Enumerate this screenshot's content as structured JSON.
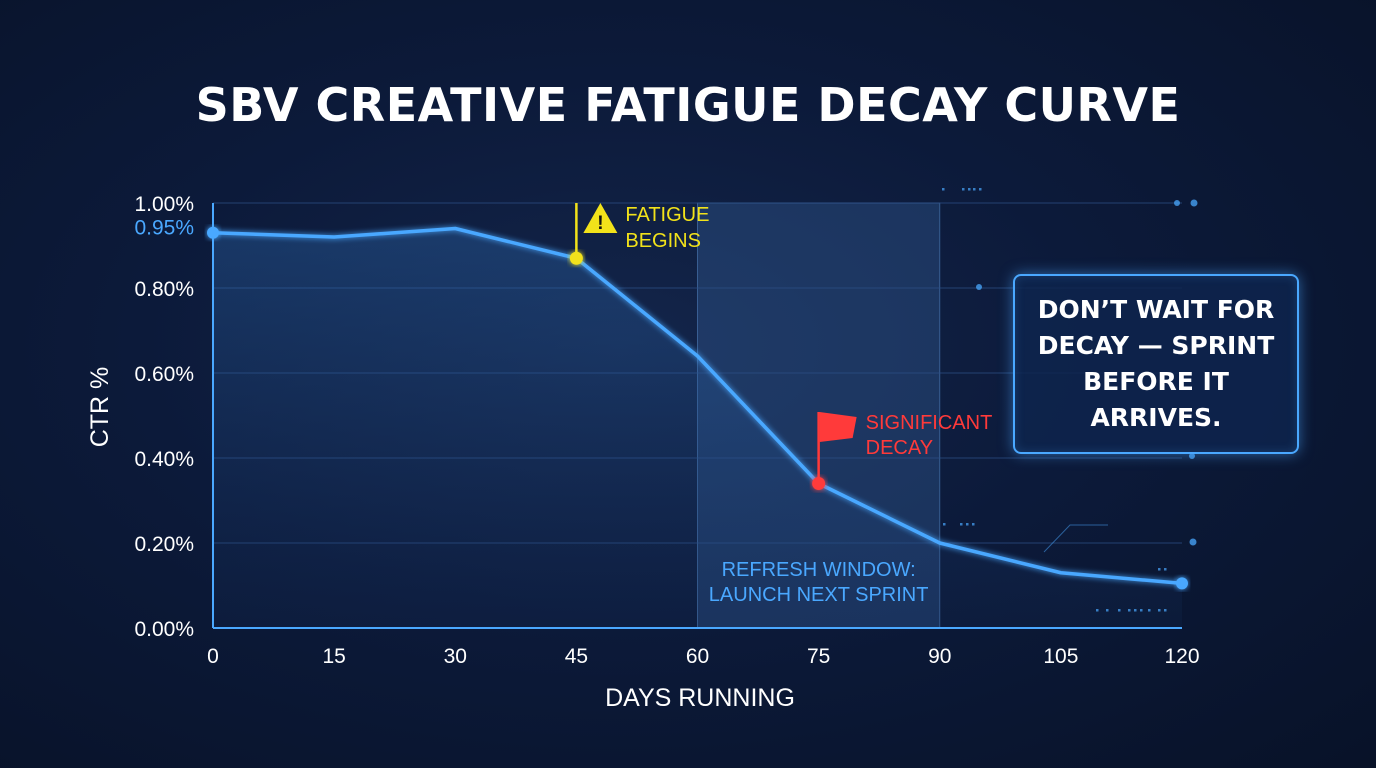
{
  "title": "SBV CREATIVE FATIGUE DECAY CURVE",
  "callout": {
    "text": "DON’T WAIT FOR DECAY — SPRINT BEFORE IT ARRIVES."
  },
  "colors": {
    "line": "#4aa8ff",
    "fatigue": "#f2e21a",
    "decay": "#ff3a3a",
    "window_text": "#4aa8ff"
  },
  "chart_data": {
    "type": "line",
    "xlabel": "DAYS RUNNING",
    "ylabel": "CTR %",
    "xlim": [
      0,
      120
    ],
    "ylim": [
      0,
      1.0
    ],
    "x_ticks": [
      "0",
      "15",
      "30",
      "45",
      "60",
      "75",
      "90",
      "105",
      "120"
    ],
    "y_ticks": [
      "0.00%",
      "0.20%",
      "0.40%",
      "0.60%",
      "0.80%",
      "1.00%"
    ],
    "highlighted_tick": "0.95%",
    "grid": true,
    "series": [
      {
        "x": [
          0,
          15,
          30,
          45,
          60,
          75,
          90,
          105,
          120
        ],
        "y": [
          0.93,
          0.92,
          0.94,
          0.87,
          0.64,
          0.34,
          0.2,
          0.13,
          0.105
        ]
      }
    ],
    "annotations": [
      {
        "x": 45,
        "y": 0.87,
        "label": "FATIGUE BEGINS",
        "label_lines": [
          "FATIGUE",
          "BEGINS"
        ],
        "icon": "warning-icon"
      },
      {
        "x": 75,
        "y": 0.34,
        "label": "SIGNIFICANT DECAY",
        "label_lines": [
          "SIGNIFICANT",
          "DECAY"
        ],
        "icon": "flag-icon"
      }
    ],
    "shaded_region": {
      "x_start": 60,
      "x_end": 90,
      "label": "REFRESH WINDOW: LAUNCH NEXT SPRINT",
      "label_lines": [
        "REFRESH WINDOW:",
        "LAUNCH NEXT SPRINT"
      ]
    }
  }
}
